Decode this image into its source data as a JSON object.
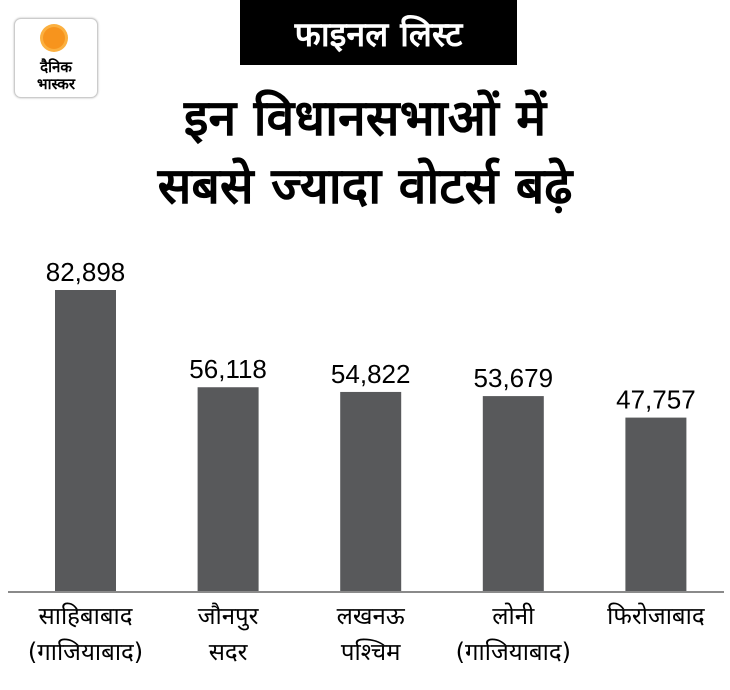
{
  "logo": {
    "line1": "दैनिक",
    "line2": "भास्कर"
  },
  "tag": "फाइनल लिस्ट",
  "title": {
    "line1": "इन विधानसभाओं में",
    "line2": "सबसे ज्यादा वोटर्स बढ़े"
  },
  "chart_data": {
    "type": "bar",
    "title": "इन विधानसभाओं में सबसे ज्यादा वोटर्स बढ़े",
    "categories": [
      {
        "line1": "साहिबाबाद",
        "line2": "(गाजियाबाद)"
      },
      {
        "line1": "जौनपुर",
        "line2": "सदर"
      },
      {
        "line1": "लखनऊ",
        "line2": "पश्चिम"
      },
      {
        "line1": "लोनी",
        "line2": "(गाजियाबाद)"
      },
      {
        "line1": "फिरोजाबाद",
        "line2": ""
      }
    ],
    "values": [
      82898,
      56118,
      54822,
      53679,
      47757
    ],
    "labels": [
      "82,898",
      "56,118",
      "54,822",
      "53,679",
      "47,757"
    ],
    "xlabel": "",
    "ylabel": "",
    "ylim": [
      0,
      82898
    ],
    "grid": false,
    "bar_color": "#58595b",
    "axis_color": "#8a8a8a"
  }
}
